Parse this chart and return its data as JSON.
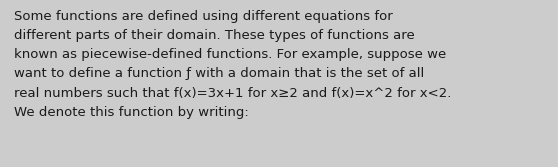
{
  "background_color": "#cccccc",
  "text_color": "#1a1a1a",
  "font_size": 9.5,
  "font_weight": "normal",
  "text_lines": [
    "Some functions are defined using different equations for",
    "different parts of their domain. These types of functions are",
    "known as piecewise-defined functions. For example, suppose we",
    "want to define a function ƒ with a domain that is the set of all",
    "real numbers such that f(x)=3x+1 for x≥2 and f(x)=x^2 for x<2.",
    "We denote this function by writing:"
  ],
  "figsize": [
    5.58,
    1.67
  ],
  "dpi": 100
}
